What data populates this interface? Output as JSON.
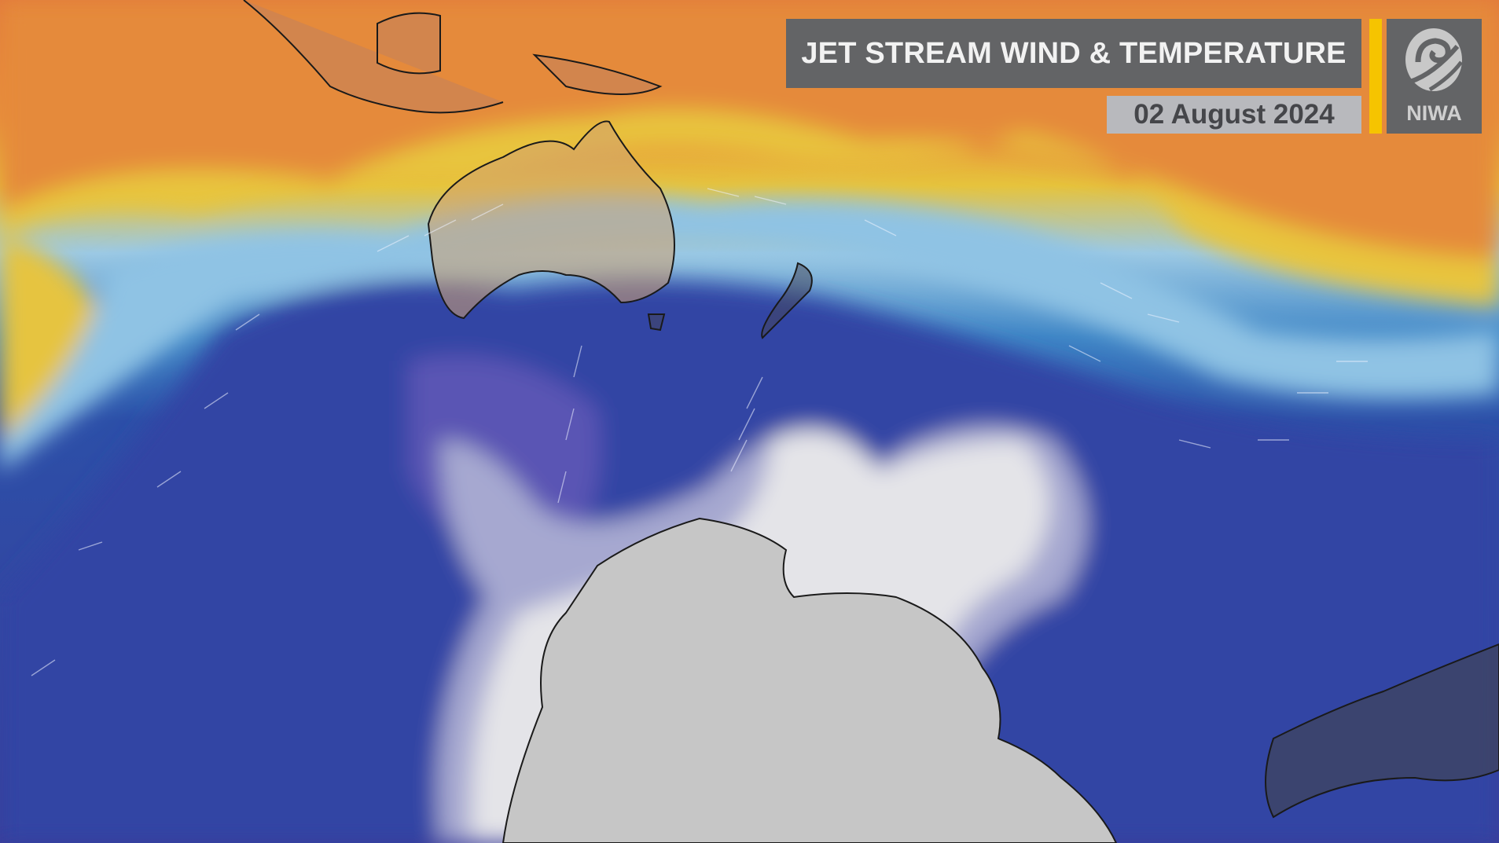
{
  "header": {
    "title": "JET STREAM WIND & TEMPERATURE",
    "date": "02 August 2024"
  },
  "logo": {
    "text": "NIWA",
    "icon": "niwa-swirl-logo-icon"
  },
  "colors": {
    "accent": "#f6c400",
    "panel": "#636466",
    "date_panel": "#b8b9bd",
    "warm": "#e07a3a",
    "mild": "#e8c23a",
    "cool": "#8cc4e6",
    "cold": "#2f5fb0",
    "very_cold": "#4a48a8",
    "coldest": "#e4e4e8",
    "land_antarctica": "#c9c9c9"
  }
}
